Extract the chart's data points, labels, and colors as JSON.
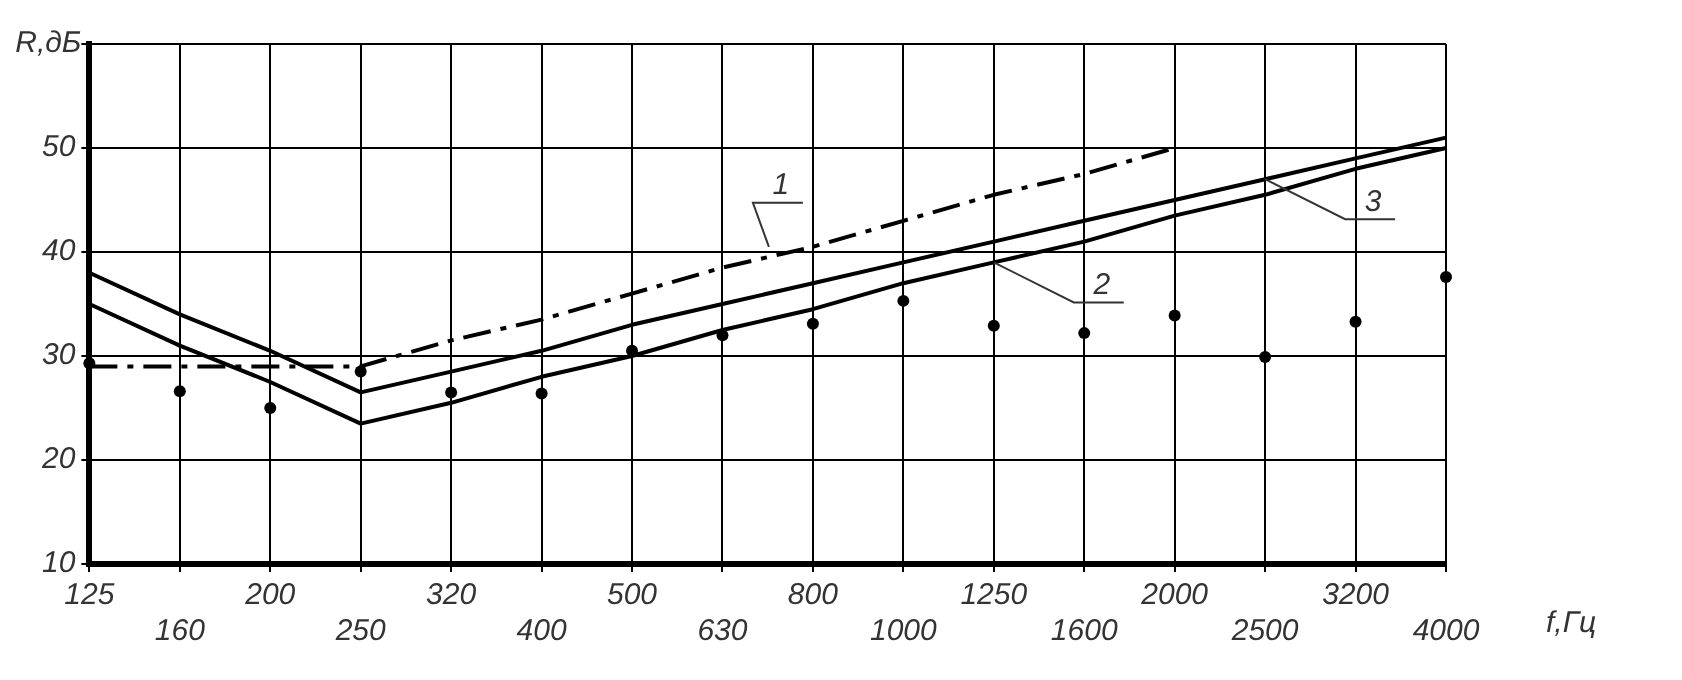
{
  "chart_data": {
    "type": "line",
    "xlabel": "f,Гц",
    "ylabel": "R,дБ",
    "categories": [
      "125",
      "160",
      "200",
      "250",
      "320",
      "400",
      "500",
      "630",
      "800",
      "1000",
      "1250",
      "1600",
      "2000",
      "2500",
      "3200",
      "4000"
    ],
    "series": [
      {
        "type": "line",
        "color": "#000000",
        "line_style": "dashed",
        "marker": "none",
        "values": [
          29,
          29,
          29,
          29,
          31.5,
          33.5,
          36,
          38.5,
          40.5,
          43,
          45.5,
          47.5,
          50,
          null,
          null,
          null
        ]
      },
      {
        "type": "line",
        "color": "#000000",
        "line_style": "solid",
        "marker": "none",
        "values": [
          35,
          31,
          27.5,
          23.5,
          25.5,
          28,
          30,
          32.5,
          34.5,
          37,
          39,
          41,
          43.5,
          45.5,
          48,
          50
        ]
      },
      {
        "type": "line",
        "color": "#000000",
        "line_style": "solid",
        "marker": "none",
        "values": [
          38,
          34,
          30.5,
          26.5,
          28.5,
          30.5,
          33,
          35,
          37,
          39,
          41,
          43,
          45,
          47,
          49,
          51
        ]
      },
      {
        "type": "scatter",
        "color": "#000000",
        "marker": "circle",
        "values": [
          29.3,
          26.6,
          25,
          28.5,
          26.5,
          26.4,
          30.5,
          32,
          33.1,
          35.3,
          32.9,
          32.2,
          33.9,
          29.9,
          33.3,
          37.6
        ]
      }
    ],
    "ylim": [
      10,
      60
    ],
    "yticks": [
      10,
      20,
      30,
      40,
      50,
      {
        "value": 60,
        "label": null
      }
    ],
    "grid": true,
    "legend": false,
    "annotations": [
      {
        "text": "1",
        "x": "800",
        "y": 40.5
      },
      {
        "text": "2",
        "x": "1250",
        "y": 39
      },
      {
        "text": "3",
        "x": "2500",
        "y": 47
      }
    ]
  }
}
